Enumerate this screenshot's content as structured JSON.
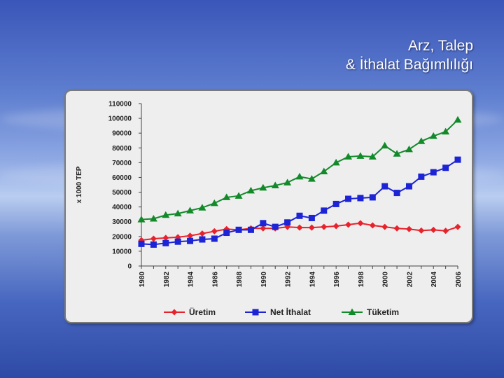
{
  "slide": {
    "title_line1": "Arz, Talep",
    "title_line2": "& İthalat Bağımlılığı"
  },
  "chart_data": {
    "type": "line",
    "title": "",
    "xlabel": "",
    "ylabel": "x 1000 TEP",
    "ylim": [
      0,
      110000
    ],
    "yticks": [
      0,
      10000,
      20000,
      30000,
      40000,
      50000,
      60000,
      70000,
      80000,
      90000,
      100000,
      110000
    ],
    "x": [
      1980,
      1981,
      1982,
      1983,
      1984,
      1985,
      1986,
      1987,
      1988,
      1989,
      1990,
      1991,
      1992,
      1993,
      1994,
      1995,
      1996,
      1997,
      1998,
      1999,
      2000,
      2001,
      2002,
      2003,
      2004,
      2005,
      2006
    ],
    "xtick_labels": [
      "1980",
      "1982",
      "1984",
      "1986",
      "1988",
      "1990",
      "1992",
      "1994",
      "1996",
      "1998",
      "2000",
      "2002",
      "2004",
      "2006"
    ],
    "legend_position": "bottom",
    "grid": false,
    "series": [
      {
        "name": "Üretim",
        "color": "#e8222b",
        "marker": "diamond",
        "values": [
          17500,
          18500,
          19000,
          19500,
          20500,
          22000,
          23500,
          25000,
          24500,
          25500,
          25500,
          25500,
          26500,
          26000,
          26000,
          26500,
          27000,
          28000,
          29000,
          27500,
          26500,
          25500,
          25000,
          24000,
          24500,
          23800,
          26500
        ]
      },
      {
        "name": "Net İthalat",
        "color": "#1c24d6",
        "marker": "square",
        "values": [
          15000,
          14500,
          15500,
          16500,
          17000,
          18000,
          18500,
          22500,
          24500,
          24500,
          29000,
          26500,
          29500,
          34000,
          32500,
          37500,
          42000,
          45500,
          46000,
          46500,
          54000,
          49500,
          54000,
          60500,
          63500,
          66500,
          72000
        ]
      },
      {
        "name": "Tüketim",
        "color": "#138a2a",
        "marker": "triangle",
        "values": [
          31500,
          32000,
          34500,
          35500,
          37500,
          39500,
          42500,
          46500,
          47500,
          51000,
          53000,
          54500,
          56500,
          60500,
          59000,
          64000,
          70000,
          74000,
          74500,
          74000,
          81500,
          76000,
          79000,
          84500,
          88000,
          91000,
          99000
        ]
      }
    ]
  }
}
